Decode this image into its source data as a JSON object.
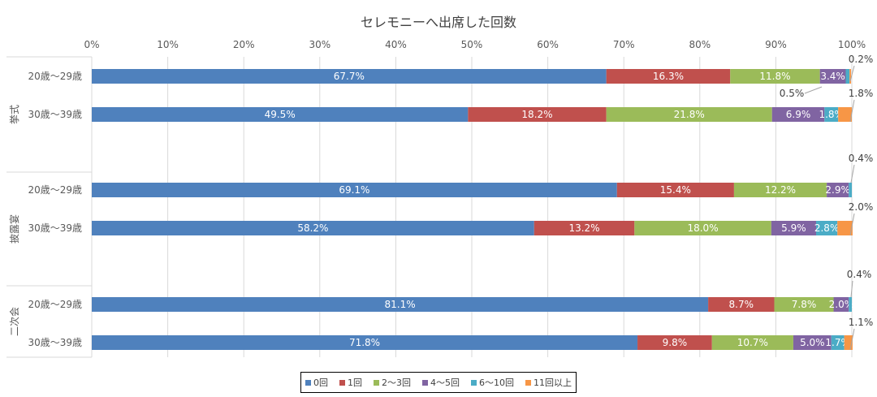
{
  "chart_data": {
    "type": "bar",
    "stacked": "percent",
    "orientation": "horizontal",
    "title": "セレモニーへ出席した回数",
    "xlim": [
      0,
      100
    ],
    "x_ticks": [
      "0%",
      "10%",
      "20%",
      "30%",
      "40%",
      "50%",
      "60%",
      "70%",
      "80%",
      "90%",
      "100%"
    ],
    "grid": true,
    "legend_position": "bottom",
    "groups": [
      {
        "name": "挙式",
        "categories": [
          "20歳～29歳",
          "30歳～39歳"
        ]
      },
      {
        "name": "披露宴",
        "categories": [
          "20歳～29歳",
          "30歳～39歳"
        ]
      },
      {
        "name": "二次会",
        "categories": [
          "20歳～29歳",
          "30歳～39歳"
        ]
      }
    ],
    "series": [
      {
        "name": "0回",
        "color": "#4f81bd",
        "values": [
          67.7,
          49.5,
          69.1,
          58.2,
          81.1,
          71.8
        ]
      },
      {
        "name": "1回",
        "color": "#c0504d",
        "values": [
          16.3,
          18.2,
          15.4,
          13.2,
          8.7,
          9.8
        ]
      },
      {
        "name": "2～3回",
        "color": "#9bbb59",
        "values": [
          11.8,
          21.8,
          12.2,
          18.0,
          7.8,
          10.7
        ]
      },
      {
        "name": "4～5回",
        "color": "#8064a2",
        "values": [
          3.4,
          6.9,
          2.9,
          5.9,
          2.0,
          5.0
        ]
      },
      {
        "name": "6～10回",
        "color": "#4bacc6",
        "values": [
          0.5,
          1.8,
          0.4,
          2.8,
          0.4,
          1.7
        ]
      },
      {
        "name": "11回以上",
        "color": "#f79646",
        "values": [
          0.2,
          1.8,
          0,
          2.0,
          0,
          1.1
        ]
      }
    ]
  }
}
